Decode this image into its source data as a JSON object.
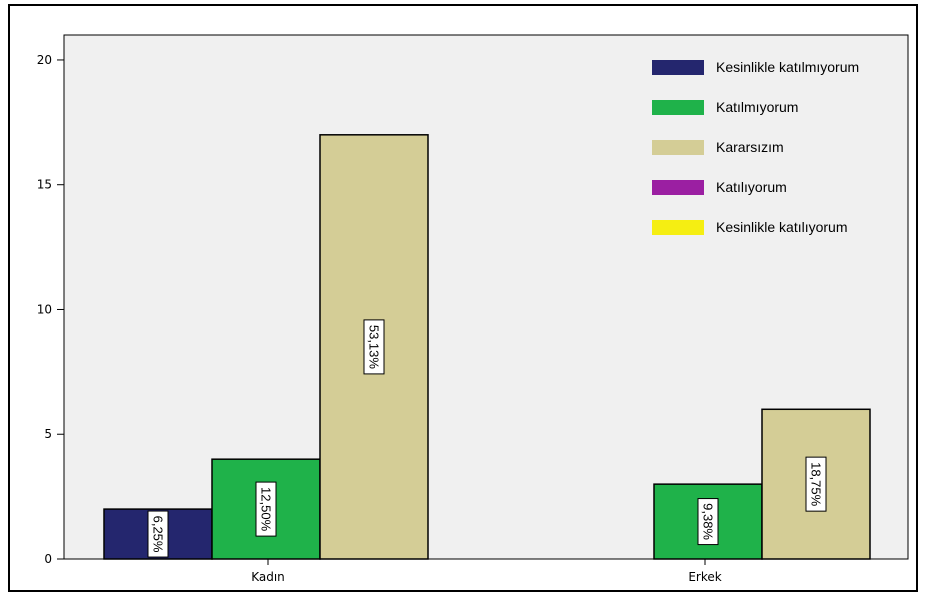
{
  "chart_data": {
    "type": "bar",
    "categories": [
      "Kadın",
      "Erkek"
    ],
    "series": [
      {
        "name": "Kesinlikle katılmıyorum",
        "color": "#24266e",
        "values": [
          2,
          0
        ],
        "labels": [
          "6,25%",
          ""
        ]
      },
      {
        "name": "Katılmıyorum",
        "color": "#1fb24a",
        "values": [
          4,
          3
        ],
        "labels": [
          "12,50%",
          "9,38%"
        ]
      },
      {
        "name": "Kararsızım",
        "color": "#d4cd96",
        "values": [
          17,
          6
        ],
        "labels": [
          "53,13%",
          "18,75%"
        ]
      },
      {
        "name": "Katılıyorum",
        "color": "#9b1fa2",
        "values": [
          0,
          0
        ],
        "labels": [
          "",
          ""
        ]
      },
      {
        "name": "Kesinlikle katılıyorum",
        "color": "#f5ee12",
        "values": [
          0,
          0
        ],
        "labels": [
          "",
          ""
        ]
      }
    ],
    "yticks": [
      "0",
      "5",
      "10",
      "15",
      "20"
    ],
    "ylim": [
      0,
      21
    ],
    "legend_position": "top-right",
    "grid": false,
    "plot_background": "#f0f0f0"
  }
}
